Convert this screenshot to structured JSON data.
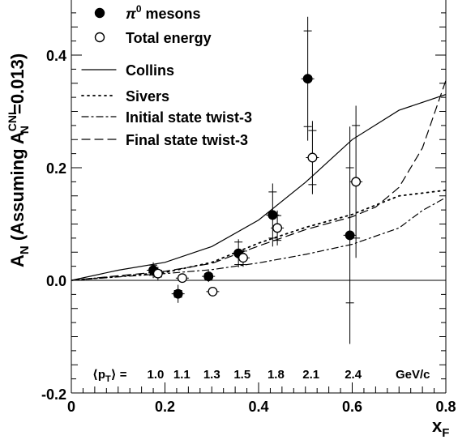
{
  "chart_data": {
    "type": "scatter",
    "title": "",
    "xlabel": "x",
    "xlabel_sub": "F",
    "ylabel_main": "A",
    "ylabel_sub": "N",
    "ylabel_paren_open": " (Assuming A",
    "ylabel_paren_sup": "CNI",
    "ylabel_paren_sub": "N",
    "ylabel_paren_tail": "=0.013)",
    "xlim": [
      0,
      0.8
    ],
    "ylim": [
      -0.2,
      0.48
    ],
    "grid": false,
    "legend_position": "top-left",
    "x_ticks": [
      {
        "value": 0,
        "label": "0"
      },
      {
        "value": 0.2,
        "label": "0.2"
      },
      {
        "value": 0.4,
        "label": "0.4"
      },
      {
        "value": 0.6,
        "label": "0.6"
      },
      {
        "value": 0.8,
        "label": "0.8"
      }
    ],
    "y_ticks": [
      {
        "value": -0.2,
        "label": "-0.2"
      },
      {
        "value": 0,
        "label": "0.0"
      },
      {
        "value": 0.2,
        "label": "0.2"
      },
      {
        "value": 0.4,
        "label": "0.4"
      }
    ],
    "zero_line": 0,
    "series": [
      {
        "name": "π⁰ mesons",
        "legend_main": "π",
        "legend_sup": "0",
        "legend_tail": " mesons",
        "marker": "filled-circle",
        "points": [
          {
            "x": 0.175,
            "y": 0.018,
            "err_lo": 0.014,
            "err_hi": 0.014,
            "sys_lo": 0.009,
            "sys_hi": 0.009
          },
          {
            "x": 0.228,
            "y": -0.024,
            "err_lo": 0.016,
            "err_hi": 0.016,
            "sys_lo": 0.006,
            "sys_hi": 0.006
          },
          {
            "x": 0.293,
            "y": 0.007,
            "err_lo": 0.01,
            "err_hi": 0.01,
            "sys_lo": 0.005,
            "sys_hi": 0.005
          },
          {
            "x": 0.357,
            "y": 0.048,
            "err_lo": 0.025,
            "err_hi": 0.025,
            "sys_lo": 0.02,
            "sys_hi": 0.02
          },
          {
            "x": 0.43,
            "y": 0.116,
            "err_lo": 0.056,
            "err_hi": 0.056,
            "sys_lo": 0.041,
            "sys_hi": 0.041
          },
          {
            "x": 0.505,
            "y": 0.358,
            "err_lo": 0.11,
            "err_hi": 0.11,
            "sys_lo": 0.085,
            "sys_hi": 0.085
          },
          {
            "x": 0.595,
            "y": 0.08,
            "err_lo": 0.193,
            "err_hi": 0.193,
            "sys_lo": 0.12,
            "sys_hi": 0.12
          }
        ]
      },
      {
        "name": "Total energy",
        "marker": "open-circle",
        "points": [
          {
            "x": 0.185,
            "y": 0.012,
            "err_lo": 0.012,
            "err_hi": 0.012,
            "sys_lo": 0.006,
            "sys_hi": 0.006
          },
          {
            "x": 0.237,
            "y": 0.004,
            "err_lo": 0.008,
            "err_hi": 0.008,
            "sys_lo": 0.004,
            "sys_hi": 0.004
          },
          {
            "x": 0.302,
            "y": -0.02,
            "err_lo": 0.008,
            "err_hi": 0.008,
            "sys_lo": 0.004,
            "sys_hi": 0.004
          },
          {
            "x": 0.367,
            "y": 0.04,
            "err_lo": 0.016,
            "err_hi": 0.016,
            "sys_lo": 0.012,
            "sys_hi": 0.012
          },
          {
            "x": 0.44,
            "y": 0.093,
            "err_lo": 0.031,
            "err_hi": 0.031,
            "sys_lo": 0.022,
            "sys_hi": 0.022
          },
          {
            "x": 0.515,
            "y": 0.218,
            "err_lo": 0.065,
            "err_hi": 0.065,
            "sys_lo": 0.048,
            "sys_hi": 0.048
          },
          {
            "x": 0.608,
            "y": 0.175,
            "err_lo": 0.135,
            "err_hi": 0.135,
            "sys_lo": 0.1,
            "sys_hi": 0.1
          }
        ]
      }
    ],
    "curves": [
      {
        "name": "Collins",
        "style": "solid",
        "points": [
          [
            0,
            0
          ],
          [
            0.1,
            0.018
          ],
          [
            0.2,
            0.032
          ],
          [
            0.3,
            0.06
          ],
          [
            0.4,
            0.107
          ],
          [
            0.5,
            0.174
          ],
          [
            0.6,
            0.25
          ],
          [
            0.7,
            0.302
          ],
          [
            0.8,
            0.33
          ]
        ]
      },
      {
        "name": "Sivers",
        "style": "dotted",
        "points": [
          [
            0,
            0
          ],
          [
            0.1,
            0.007
          ],
          [
            0.2,
            0.014
          ],
          [
            0.3,
            0.032
          ],
          [
            0.4,
            0.066
          ],
          [
            0.5,
            0.094
          ],
          [
            0.6,
            0.117
          ],
          [
            0.7,
            0.15
          ],
          [
            0.8,
            0.16
          ]
        ]
      },
      {
        "name": "Initial state twist-3",
        "style": "dashdot",
        "points": [
          [
            0,
            0
          ],
          [
            0.1,
            0.006
          ],
          [
            0.2,
            0.012
          ],
          [
            0.3,
            0.019
          ],
          [
            0.4,
            0.031
          ],
          [
            0.5,
            0.046
          ],
          [
            0.6,
            0.064
          ],
          [
            0.7,
            0.093
          ],
          [
            0.75,
            0.124
          ],
          [
            0.8,
            0.147
          ]
        ]
      },
      {
        "name": "Final state twist-3",
        "style": "dashed",
        "points": [
          [
            0,
            0
          ],
          [
            0.1,
            0.008
          ],
          [
            0.2,
            0.016
          ],
          [
            0.3,
            0.03
          ],
          [
            0.4,
            0.061
          ],
          [
            0.5,
            0.09
          ],
          [
            0.6,
            0.113
          ],
          [
            0.65,
            0.13
          ],
          [
            0.7,
            0.165
          ],
          [
            0.75,
            0.235
          ],
          [
            0.8,
            0.355
          ]
        ]
      }
    ],
    "pt_annotation": {
      "prefix_bracket_open": "⟨",
      "prefix_p": "p",
      "prefix_sub": "T",
      "prefix_bracket_close": "⟩ =",
      "values": [
        {
          "x": 0.18,
          "label": "1.0"
        },
        {
          "x": 0.236,
          "label": "1.1"
        },
        {
          "x": 0.3,
          "label": "1.3"
        },
        {
          "x": 0.365,
          "label": "1.5"
        },
        {
          "x": 0.437,
          "label": "1.8"
        },
        {
          "x": 0.512,
          "label": "2.1"
        },
        {
          "x": 0.602,
          "label": "2.4"
        }
      ],
      "unit": "GeV/c"
    }
  }
}
